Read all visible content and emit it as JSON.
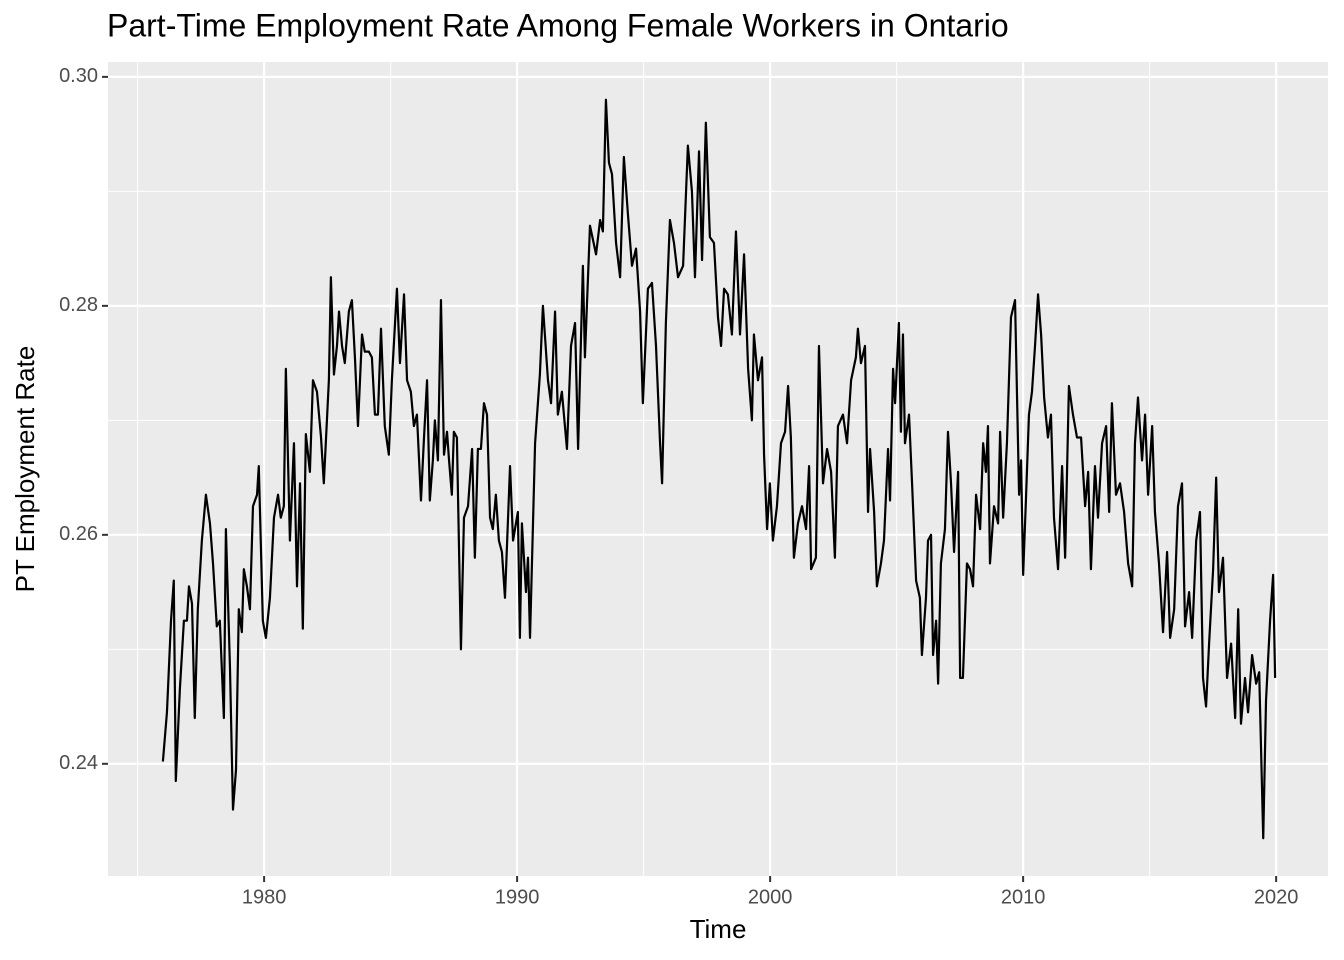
{
  "chart_data": {
    "type": "line",
    "title": "Part-Time Employment Rate Among Female Workers in Ontario",
    "x_label": "Time",
    "y_label": "PT Employment Rate",
    "color": "#000000",
    "grid": true,
    "xlim": [
      1973.83,
      2022.05
    ],
    "xticks": [
      1980,
      1990,
      2000,
      2010,
      2020
    ],
    "ylim": [
      0.2302,
      0.3013
    ],
    "yticks": [
      0.24,
      0.26,
      0.28,
      {
        "value": 0.3,
        "label": "0.30"
      }
    ],
    "x": [
      1976.0,
      1976.16,
      1976.32,
      1976.43,
      1976.51,
      1976.67,
      1976.83,
      1976.95,
      1977.03,
      1977.15,
      1977.26,
      1977.38,
      1977.54,
      1977.7,
      1977.86,
      1977.98,
      1978.13,
      1978.25,
      1978.41,
      1978.49,
      1978.65,
      1978.77,
      1978.89,
      1979.0,
      1979.12,
      1979.2,
      1979.32,
      1979.44,
      1979.56,
      1979.72,
      1979.79,
      1979.95,
      1980.07,
      1980.23,
      1980.39,
      1980.55,
      1980.66,
      1980.78,
      1980.86,
      1981.02,
      1981.18,
      1981.3,
      1981.42,
      1981.53,
      1981.65,
      1981.81,
      1981.93,
      1982.09,
      1982.25,
      1982.36,
      1982.56,
      1982.64,
      1982.76,
      1982.88,
      1982.96,
      1983.08,
      1983.19,
      1983.35,
      1983.47,
      1983.59,
      1983.71,
      1983.87,
      1983.98,
      1984.14,
      1984.26,
      1984.38,
      1984.5,
      1984.62,
      1984.77,
      1984.93,
      1985.05,
      1985.25,
      1985.37,
      1985.53,
      1985.65,
      1985.8,
      1985.92,
      1986.04,
      1986.2,
      1986.32,
      1986.44,
      1986.55,
      1986.67,
      1986.75,
      1986.87,
      1986.99,
      1987.11,
      1987.23,
      1987.31,
      1987.42,
      1987.5,
      1987.62,
      1987.78,
      1987.9,
      1988.06,
      1988.22,
      1988.33,
      1988.45,
      1988.57,
      1988.69,
      1988.81,
      1988.93,
      1989.04,
      1989.16,
      1989.28,
      1989.4,
      1989.52,
      1989.72,
      1989.84,
      1990.03,
      1990.11,
      1990.19,
      1990.35,
      1990.43,
      1990.51,
      1990.71,
      1990.9,
      1991.02,
      1991.22,
      1991.34,
      1991.5,
      1991.61,
      1991.77,
      1991.97,
      1992.13,
      1992.29,
      1992.41,
      1992.6,
      1992.68,
      1992.88,
      1993.12,
      1993.28,
      1993.39,
      1993.51,
      1993.63,
      1993.75,
      1993.91,
      1994.07,
      1994.22,
      1994.38,
      1994.54,
      1994.7,
      1994.86,
      1994.97,
      1995.17,
      1995.33,
      1995.49,
      1995.65,
      1995.73,
      1995.88,
      1996.04,
      1996.2,
      1996.36,
      1996.56,
      1996.75,
      1996.91,
      1997.03,
      1997.19,
      1997.31,
      1997.46,
      1997.62,
      1997.78,
      1997.94,
      1998.06,
      1998.18,
      1998.33,
      1998.49,
      1998.65,
      1998.81,
      1998.97,
      1999.13,
      1999.28,
      1999.36,
      1999.52,
      1999.68,
      1999.76,
      1999.88,
      1999.99,
      2000.11,
      2000.27,
      2000.43,
      2000.59,
      2000.71,
      2000.82,
      2000.94,
      2001.1,
      2001.26,
      2001.42,
      2001.54,
      2001.62,
      2001.81,
      2001.93,
      2002.09,
      2002.25,
      2002.41,
      2002.56,
      2002.68,
      2002.88,
      2003.04,
      2003.2,
      2003.39,
      2003.47,
      2003.59,
      2003.75,
      2003.87,
      2003.95,
      2004.11,
      2004.22,
      2004.38,
      2004.5,
      2004.66,
      2004.74,
      2004.86,
      2004.94,
      2005.09,
      2005.17,
      2005.25,
      2005.33,
      2005.49,
      2005.61,
      2005.77,
      2005.92,
      2006.0,
      2006.16,
      2006.24,
      2006.36,
      2006.44,
      2006.56,
      2006.64,
      2006.75,
      2006.91,
      2007.03,
      2007.15,
      2007.27,
      2007.43,
      2007.51,
      2007.62,
      2007.78,
      2007.9,
      2008.02,
      2008.14,
      2008.3,
      2008.42,
      2008.53,
      2008.61,
      2008.69,
      2008.85,
      2009.01,
      2009.09,
      2009.21,
      2009.36,
      2009.52,
      2009.68,
      2009.84,
      2009.92,
      2010.0,
      2010.11,
      2010.23,
      2010.35,
      2010.47,
      2010.59,
      2010.71,
      2010.83,
      2010.98,
      2011.1,
      2011.22,
      2011.38,
      2011.54,
      2011.66,
      2011.81,
      2011.97,
      2012.13,
      2012.29,
      2012.45,
      2012.57,
      2012.68,
      2012.84,
      2012.96,
      2013.12,
      2013.28,
      2013.4,
      2013.51,
      2013.67,
      2013.83,
      2013.99,
      2014.15,
      2014.31,
      2014.42,
      2014.54,
      2014.7,
      2014.82,
      2014.94,
      2015.1,
      2015.21,
      2015.37,
      2015.53,
      2015.69,
      2015.81,
      2015.97,
      2016.12,
      2016.28,
      2016.4,
      2016.56,
      2016.68,
      2016.84,
      2016.99,
      2017.11,
      2017.23,
      2017.35,
      2017.51,
      2017.63,
      2017.74,
      2017.9,
      2018.06,
      2018.22,
      2018.38,
      2018.5,
      2018.61,
      2018.77,
      2018.89,
      2019.05,
      2019.21,
      2019.33,
      2019.49,
      2019.6,
      2019.76,
      2019.88,
      2019.96
    ],
    "values": [
      0.2402,
      0.2445,
      0.2525,
      0.256,
      0.2385,
      0.2465,
      0.2525,
      0.2525,
      0.2555,
      0.254,
      0.244,
      0.2535,
      0.2595,
      0.2635,
      0.261,
      0.2575,
      0.252,
      0.2525,
      0.244,
      0.2605,
      0.2485,
      0.236,
      0.2395,
      0.2535,
      0.2515,
      0.257,
      0.2555,
      0.2535,
      0.2625,
      0.2635,
      0.266,
      0.2525,
      0.251,
      0.2545,
      0.2615,
      0.2635,
      0.2615,
      0.2625,
      0.2745,
      0.2595,
      0.268,
      0.2555,
      0.2645,
      0.2518,
      0.2688,
      0.2655,
      0.2735,
      0.2725,
      0.2685,
      0.2645,
      0.2735,
      0.2825,
      0.274,
      0.2765,
      0.2795,
      0.2765,
      0.275,
      0.2795,
      0.2805,
      0.2755,
      0.2695,
      0.2775,
      0.276,
      0.276,
      0.2755,
      0.2705,
      0.2705,
      0.278,
      0.2695,
      0.267,
      0.2735,
      0.2815,
      0.275,
      0.281,
      0.2735,
      0.2725,
      0.2695,
      0.2705,
      0.263,
      0.2685,
      0.2735,
      0.263,
      0.2665,
      0.27,
      0.2665,
      0.2805,
      0.267,
      0.269,
      0.2665,
      0.2635,
      0.269,
      0.2685,
      0.25,
      0.2615,
      0.2625,
      0.2675,
      0.258,
      0.2675,
      0.2675,
      0.2715,
      0.2705,
      0.2615,
      0.2605,
      0.2635,
      0.2595,
      0.2585,
      0.2545,
      0.266,
      0.2595,
      0.262,
      0.251,
      0.261,
      0.255,
      0.258,
      0.251,
      0.268,
      0.274,
      0.28,
      0.2735,
      0.2715,
      0.2795,
      0.2705,
      0.2725,
      0.2675,
      0.2765,
      0.2785,
      0.2675,
      0.2835,
      0.2755,
      0.287,
      0.2845,
      0.2875,
      0.2865,
      0.298,
      0.2925,
      0.2915,
      0.2855,
      0.2825,
      0.293,
      0.288,
      0.2835,
      0.285,
      0.2795,
      0.2715,
      0.2815,
      0.282,
      0.2765,
      0.268,
      0.2645,
      0.2785,
      0.2875,
      0.2855,
      0.2825,
      0.2835,
      0.294,
      0.29,
      0.2825,
      0.2935,
      0.284,
      0.296,
      0.286,
      0.2855,
      0.279,
      0.2765,
      0.2815,
      0.281,
      0.2775,
      0.2865,
      0.2775,
      0.2845,
      0.2745,
      0.27,
      0.2775,
      0.2735,
      0.2755,
      0.267,
      0.2605,
      0.2645,
      0.2595,
      0.2625,
      0.268,
      0.269,
      0.273,
      0.2685,
      0.258,
      0.261,
      0.2625,
      0.2605,
      0.266,
      0.257,
      0.258,
      0.2765,
      0.2645,
      0.2675,
      0.2655,
      0.258,
      0.2695,
      0.2705,
      0.268,
      0.2735,
      0.2755,
      0.278,
      0.275,
      0.2765,
      0.262,
      0.2675,
      0.262,
      0.2555,
      0.2575,
      0.2595,
      0.2675,
      0.263,
      0.2745,
      0.2715,
      0.2785,
      0.269,
      0.2775,
      0.268,
      0.2705,
      0.2645,
      0.256,
      0.2545,
      0.2495,
      0.2545,
      0.2595,
      0.26,
      0.2495,
      0.2525,
      0.247,
      0.2575,
      0.2605,
      0.269,
      0.2645,
      0.2585,
      0.2655,
      0.2475,
      0.2475,
      0.2575,
      0.257,
      0.2555,
      0.2635,
      0.2605,
      0.268,
      0.2655,
      0.2695,
      0.2575,
      0.2625,
      0.261,
      0.269,
      0.2615,
      0.268,
      0.279,
      0.2805,
      0.2635,
      0.2665,
      0.2565,
      0.263,
      0.2705,
      0.2725,
      0.2765,
      0.281,
      0.2775,
      0.272,
      0.2685,
      0.2705,
      0.2615,
      0.257,
      0.266,
      0.258,
      0.273,
      0.2705,
      0.2685,
      0.2685,
      0.2625,
      0.2655,
      0.257,
      0.266,
      0.2615,
      0.268,
      0.2695,
      0.262,
      0.2715,
      0.2635,
      0.2645,
      0.262,
      0.2575,
      0.2555,
      0.268,
      0.272,
      0.2665,
      0.2705,
      0.2635,
      0.2695,
      0.262,
      0.2575,
      0.2515,
      0.2585,
      0.251,
      0.2535,
      0.2625,
      0.2645,
      0.252,
      0.255,
      0.251,
      0.2595,
      0.262,
      0.2475,
      0.245,
      0.2505,
      0.257,
      0.265,
      0.255,
      0.258,
      0.2475,
      0.2505,
      0.244,
      0.2535,
      0.2435,
      0.2475,
      0.2445,
      0.2495,
      0.247,
      0.248,
      0.2335,
      0.2455,
      0.2525,
      0.2565,
      0.2475
    ]
  }
}
